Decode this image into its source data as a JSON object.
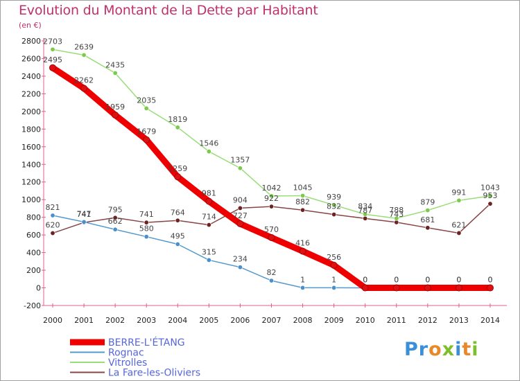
{
  "title": "Evolution du Montant de la Dette par Habitant",
  "subtitle": "(en €)",
  "logo": {
    "text": "Proxiti",
    "letter_colors": [
      "#3a8fd8",
      "#3a8fd8",
      "#e7892a",
      "#7cbf2a",
      "#3a8fd8",
      "#e7892a",
      "#7cbf2a"
    ]
  },
  "chart_data": {
    "type": "line",
    "title": "Evolution du Montant de la Dette par Habitant",
    "subtitle": "(en €)",
    "x": [
      "2000",
      "2001",
      "2002",
      "2003",
      "2004",
      "2005",
      "2006",
      "2007",
      "2008",
      "2009",
      "2010",
      "2011",
      "2012",
      "2013",
      "2014"
    ],
    "y_ticks": [
      "-200",
      "0",
      "200",
      "400",
      "600",
      "800",
      "1000",
      "1200",
      "1400",
      "1600",
      "1800",
      "2000",
      "2200",
      "2400",
      "2600",
      "2800"
    ],
    "ylim": [
      -200,
      2800
    ],
    "grid": false,
    "legend_position": "bottom-left",
    "series": [
      {
        "name": "BERRE-L'ÉTANG",
        "color": "#ee0000",
        "marker_color": "#dd1111",
        "values": [
          2495,
          2262,
          1959,
          1679,
          1259,
          981,
          727,
          570,
          416,
          256,
          0,
          0,
          0,
          0,
          0
        ],
        "labels": [
          "2495",
          "2262",
          "1959",
          "1679",
          "1259",
          "981",
          "727",
          "570",
          "416",
          "256",
          "0",
          "0",
          "0",
          "0",
          "0"
        ]
      },
      {
        "name": "Rognac",
        "color": "#5599cc",
        "marker_color": "#4a8fcb",
        "values": [
          821,
          747,
          662,
          580,
          495,
          315,
          234,
          82,
          1,
          1,
          0,
          0,
          0,
          0,
          0
        ],
        "labels": [
          "821",
          "747",
          "662",
          "580",
          "495",
          "315",
          "234",
          "82",
          "1",
          "1",
          "0",
          "0",
          "0",
          "0",
          "0"
        ]
      },
      {
        "name": "Vitrolles",
        "color": "#99dd77",
        "marker_color": "#7cc94e",
        "values": [
          2703,
          2639,
          2435,
          2035,
          1819,
          1546,
          1357,
          1042,
          1045,
          939,
          834,
          788,
          879,
          991,
          1043
        ],
        "labels": [
          "2703",
          "2639",
          "2435",
          "2035",
          "1819",
          "1546",
          "1357",
          "1042",
          "1045",
          "939",
          "834",
          "788",
          "879",
          "991",
          "1043"
        ]
      },
      {
        "name": "La Fare-les-Oliviers",
        "color": "#884444",
        "marker_color": "#6e2222",
        "values": [
          620,
          741,
          795,
          741,
          764,
          714,
          904,
          922,
          882,
          832,
          787,
          743,
          681,
          621,
          953
        ],
        "labels": [
          "620",
          "741",
          "795",
          "741",
          "764",
          "714",
          "904",
          "922",
          "882",
          "832",
          "787",
          "743",
          "681",
          "621",
          "953"
        ]
      }
    ]
  }
}
